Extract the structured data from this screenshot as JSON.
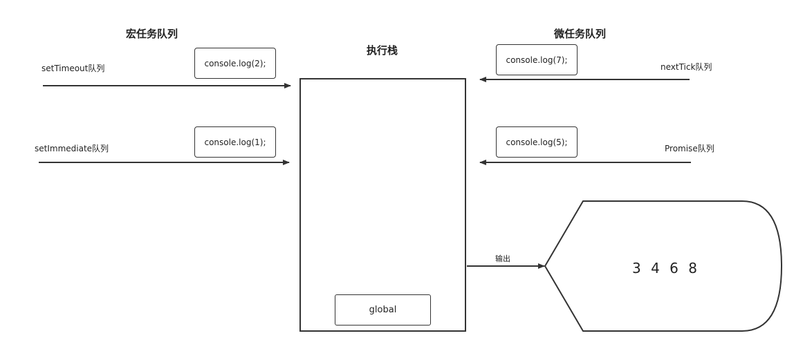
{
  "macro": {
    "title": "宏任务队列",
    "queues": [
      {
        "label": "setTimeout队列",
        "task": "console.log(2);"
      },
      {
        "label": "setImmediate队列",
        "task": "console.log(1);"
      }
    ]
  },
  "micro": {
    "title": "微任务队列",
    "queues": [
      {
        "label": "nextTick队列",
        "task": "console.log(7);"
      },
      {
        "label": "Promise队列",
        "task": "console.log(5);"
      }
    ]
  },
  "stack": {
    "title": "执行栈",
    "frame": "global"
  },
  "output": {
    "label": "输出",
    "result": "3 4 6 8"
  },
  "colors": {
    "stroke": "#333333",
    "background": "#ffffff"
  }
}
